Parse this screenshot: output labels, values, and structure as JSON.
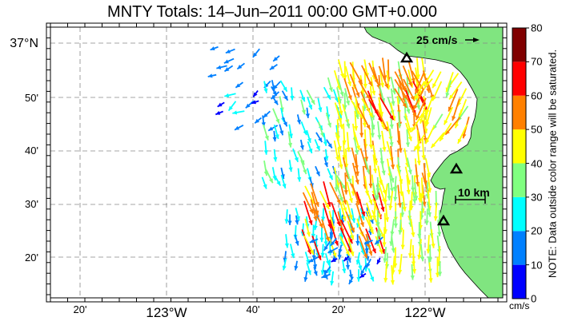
{
  "title": "MNTY Totals: 14–Jun–2011 00:00 GMT+0.000",
  "scale_arrow_label": "25 cm/s",
  "scale_bar_label": "10 km",
  "colorbar": {
    "ticks": [
      "0",
      "10",
      "20",
      "30",
      "40",
      "50",
      "60",
      "70",
      "80"
    ],
    "unit": "cm/s",
    "note": "NOTE: Data outside color range will be saturated.",
    "colors": [
      "#0000ff",
      "#0080ff",
      "#00ffff",
      "#80ff80",
      "#ffff00",
      "#ff8000",
      "#ff0000",
      "#800000"
    ]
  },
  "y_labels": [
    "37°N",
    "50'",
    "40'",
    "30'",
    "20'"
  ],
  "x_labels": [
    "20'",
    "123°W",
    "40'",
    "20'",
    "122°W"
  ],
  "land_color": "#80e580",
  "sites": [
    "triangle-north",
    "triangle-mid",
    "triangle-south"
  ]
}
